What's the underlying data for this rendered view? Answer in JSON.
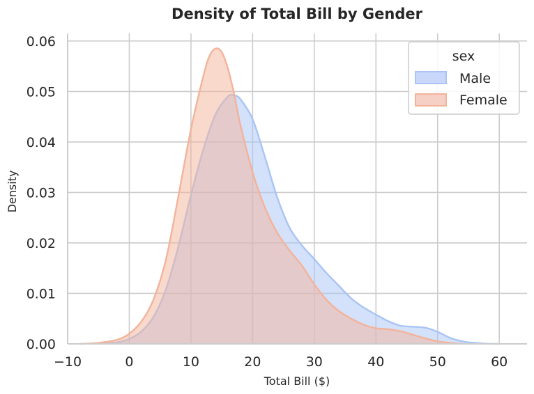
{
  "chart_data": {
    "type": "area",
    "title": "Density of Total Bill by Gender",
    "xlabel": "Total Bill ($)",
    "ylabel": "Density",
    "xlim": [
      -10,
      64.5
    ],
    "ylim": [
      0,
      0.0615
    ],
    "xticks": [
      -10,
      0,
      10,
      20,
      30,
      40,
      50,
      60
    ],
    "yticks": [
      0.0,
      0.01,
      0.02,
      0.03,
      0.04,
      0.05,
      0.06
    ],
    "xtick_labels": [
      "−10",
      "0",
      "10",
      "20",
      "30",
      "40",
      "50",
      "60"
    ],
    "ytick_labels": [
      "0.00",
      "0.01",
      "0.02",
      "0.03",
      "0.04",
      "0.05",
      "0.06"
    ],
    "grid": true,
    "legend": {
      "title": "sex",
      "placement": "top-right"
    },
    "series": [
      {
        "name": "Male",
        "color": "#a9c4f5",
        "fill": "#c9d8fa",
        "x": [
          -5,
          -2,
          0,
          2,
          4,
          6,
          8,
          10,
          12,
          14,
          16,
          17,
          18,
          20,
          22,
          24,
          26,
          28,
          30,
          32,
          34,
          36,
          38,
          40,
          42,
          44,
          46,
          48,
          50,
          52,
          54,
          56,
          58,
          60
        ],
        "y": [
          0.0,
          0.0003,
          0.001,
          0.0025,
          0.0055,
          0.011,
          0.0195,
          0.0295,
          0.0385,
          0.0455,
          0.049,
          0.0492,
          0.0485,
          0.0445,
          0.037,
          0.029,
          0.023,
          0.0195,
          0.0168,
          0.014,
          0.0115,
          0.009,
          0.0072,
          0.0058,
          0.0045,
          0.0036,
          0.0034,
          0.0032,
          0.0024,
          0.0012,
          0.0005,
          0.0002,
          5e-05,
          0.0
        ]
      },
      {
        "name": "Female",
        "color": "#f3b39a",
        "fill": "#f6d0c4",
        "x": [
          -8,
          -5,
          -2,
          0,
          2,
          4,
          6,
          8,
          10,
          12,
          13,
          14,
          15,
          16,
          17,
          18,
          20,
          22,
          24,
          26,
          28,
          30,
          32,
          34,
          36,
          38,
          40,
          42,
          44,
          46,
          48,
          50,
          52,
          54
        ],
        "y": [
          0.0,
          0.0002,
          0.0008,
          0.002,
          0.0045,
          0.009,
          0.017,
          0.0295,
          0.0425,
          0.053,
          0.057,
          0.0585,
          0.0578,
          0.0545,
          0.0495,
          0.0435,
          0.034,
          0.027,
          0.022,
          0.0185,
          0.0155,
          0.0118,
          0.0087,
          0.0065,
          0.005,
          0.0038,
          0.0031,
          0.0029,
          0.0025,
          0.0018,
          0.0011,
          0.0005,
          0.0002,
          0.0
        ]
      }
    ]
  }
}
